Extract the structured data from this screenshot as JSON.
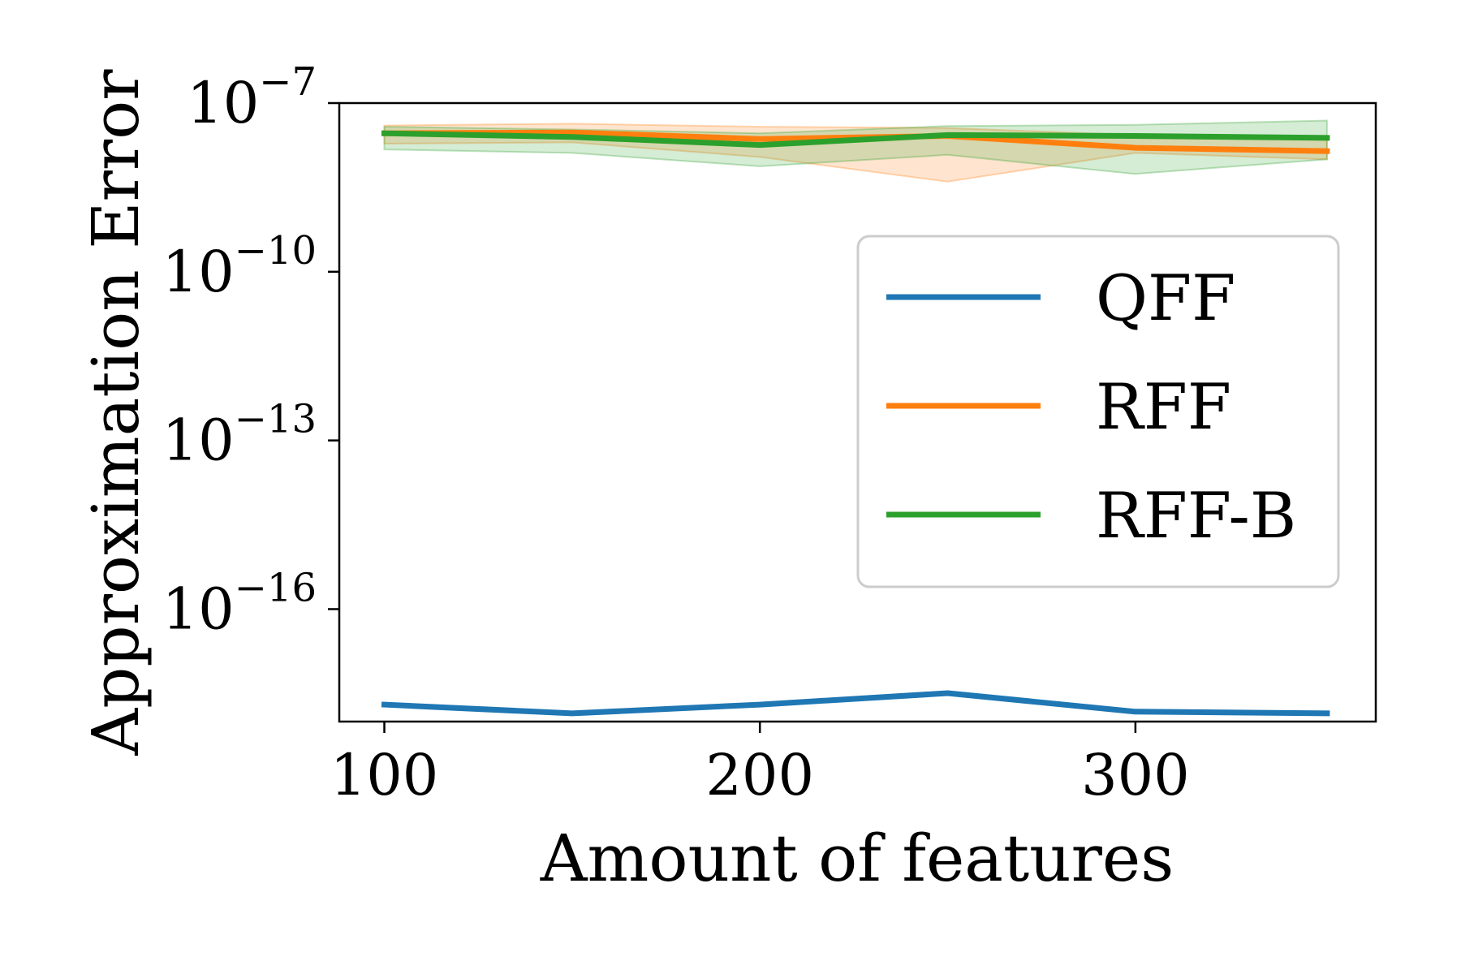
{
  "chart_data": {
    "type": "line",
    "xlabel": "Amount of features",
    "ylabel": "Approximation Error",
    "yscale": "log",
    "xlim": [
      88,
      364
    ],
    "ylim": [
      1e-18,
      1e-07
    ],
    "x_ticks": [
      100,
      200,
      300
    ],
    "y_ticks": [
      {
        "base": "10",
        "exp": "−7",
        "value": 1e-07
      },
      {
        "base": "10",
        "exp": "−10",
        "value": 1e-10
      },
      {
        "base": "10",
        "exp": "−13",
        "value": 1e-13
      },
      {
        "base": "10",
        "exp": "−16",
        "value": 1e-16
      }
    ],
    "grid": false,
    "legend_position": "center-right",
    "x": [
      100,
      150,
      200,
      250,
      300,
      351
    ],
    "series": [
      {
        "name": "QFF",
        "color": "#1f77b4",
        "values": [
          2e-18,
          1.4e-18,
          2e-18,
          3.2e-18,
          1.5e-18,
          1.4e-18
        ]
      },
      {
        "name": "RFF",
        "color": "#ff7f0e",
        "values": [
          2.9e-08,
          3e-08,
          2.3e-08,
          2.6e-08,
          1.6e-08,
          1.4e-08
        ],
        "lower": [
          1.9e-08,
          2e-08,
          1.1e-08,
          4e-09,
          1.3e-08,
          1e-08
        ],
        "upper": [
          4e-08,
          4.3e-08,
          3.8e-08,
          3.6e-08,
          2.7e-08,
          2.2e-08
        ]
      },
      {
        "name": "RFF-B",
        "color": "#2ca02c",
        "values": [
          2.9e-08,
          2.5e-08,
          1.8e-08,
          2.7e-08,
          2.6e-08,
          2.4e-08
        ],
        "lower": [
          1.5e-08,
          1.3e-08,
          7.5e-09,
          1.2e-08,
          5.5e-09,
          1e-08
        ],
        "upper": [
          3.8e-08,
          3.4e-08,
          2.9e-08,
          3.9e-08,
          4.1e-08,
          4.9e-08
        ]
      }
    ]
  }
}
